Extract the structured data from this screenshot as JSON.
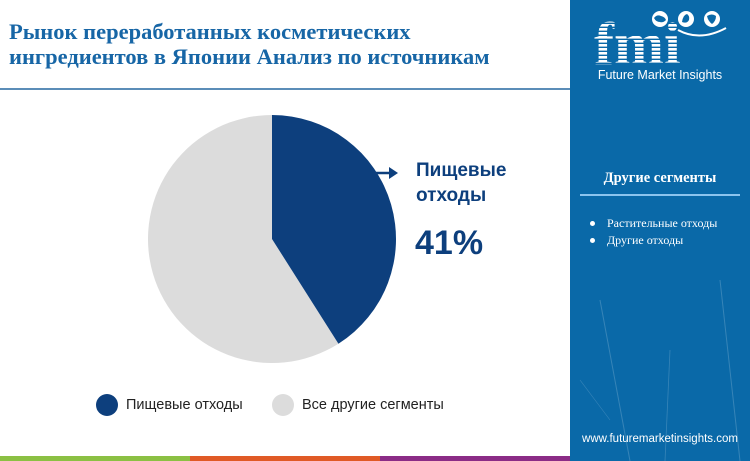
{
  "header": {
    "title_line1": "Рынок переработанных косметических",
    "title_line2": "ингредиентов в Японии Анализ по источникам"
  },
  "callout": {
    "label_line1": "Пищевые",
    "label_line2": "отходы",
    "value": "41%"
  },
  "legend": [
    {
      "label": "Пищевые отходы",
      "color": "#0D3F7D"
    },
    {
      "label": "Все другие сегменты",
      "color": "#DCDCDC"
    }
  ],
  "sidebar": {
    "logo_text": "fmi",
    "logo_caption": "Future Market Insights",
    "heading": "Другие сегменты",
    "items": [
      "Растительные отходы",
      "Другие отходы"
    ],
    "url": "www.futuremarketinsights.com",
    "background": "#0A69A8"
  },
  "bottom_bar_colors": [
    "#8BC043",
    "#E05A26",
    "#8B2C86"
  ],
  "chart_data": {
    "type": "pie",
    "title": "Рынок переработанных косметических ингредиентов в Японии Анализ по источникам",
    "categories": [
      "Пищевые отходы",
      "Все другие сегменты"
    ],
    "values": [
      41,
      59
    ],
    "colors": [
      "#0D3F7D",
      "#DCDCDC"
    ],
    "annotations": [
      {
        "label": "Пищевые отходы",
        "value": "41%"
      }
    ],
    "legend_position": "bottom",
    "start_angle": "12 o'clock, clockwise"
  }
}
